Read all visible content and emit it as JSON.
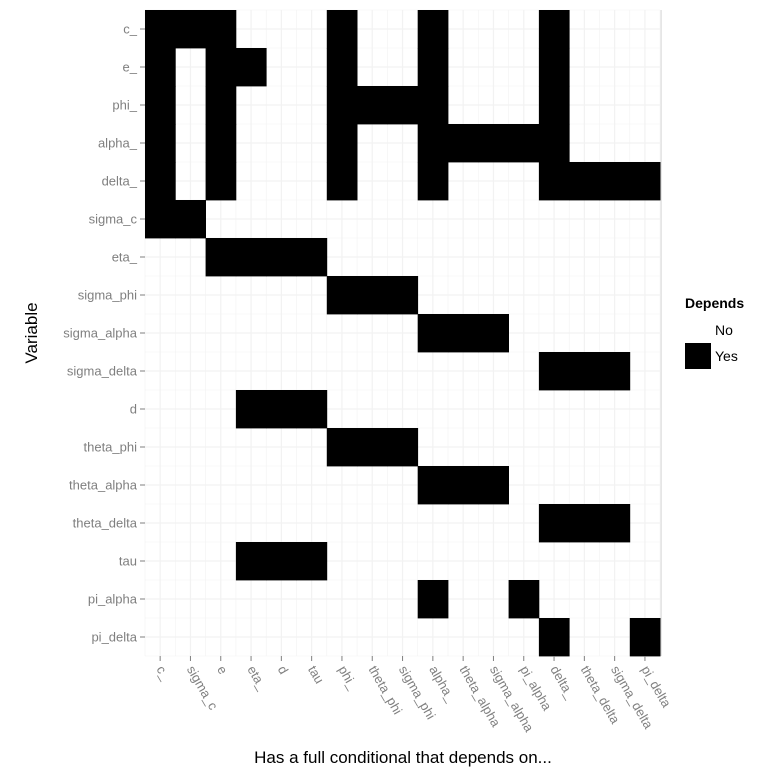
{
  "chart_data": {
    "type": "heatmap",
    "xlabel": "Has a full conditional that depends on...",
    "ylabel": "Variable",
    "x_categories": [
      "c_",
      "sigma_c",
      "e",
      "eta_",
      "d",
      "tau",
      "phi_",
      "theta_phi",
      "sigma_phi",
      "alpha_",
      "theta_alpha",
      "sigma_alpha",
      "pi_alpha",
      "delta_",
      "theta_delta",
      "sigma_delta",
      "pi_delta"
    ],
    "y_categories": [
      "c_",
      "e_",
      "phi_",
      "alpha_",
      "delta_",
      "sigma_c",
      "eta_",
      "sigma_phi",
      "sigma_alpha",
      "sigma_delta",
      "d",
      "theta_phi",
      "theta_alpha",
      "theta_delta",
      "tau",
      "pi_alpha",
      "pi_delta"
    ],
    "values": [
      [
        1,
        1,
        1,
        0,
        0,
        0,
        1,
        0,
        0,
        1,
        0,
        0,
        0,
        1,
        0,
        0,
        0
      ],
      [
        1,
        0,
        1,
        1,
        0,
        0,
        1,
        0,
        0,
        1,
        0,
        0,
        0,
        1,
        0,
        0,
        0
      ],
      [
        1,
        0,
        1,
        0,
        0,
        0,
        1,
        1,
        1,
        1,
        0,
        0,
        0,
        1,
        0,
        0,
        0
      ],
      [
        1,
        0,
        1,
        0,
        0,
        0,
        1,
        0,
        0,
        1,
        1,
        1,
        1,
        1,
        0,
        0,
        0
      ],
      [
        1,
        0,
        1,
        0,
        0,
        0,
        1,
        0,
        0,
        1,
        0,
        0,
        0,
        1,
        1,
        1,
        1
      ],
      [
        1,
        1,
        0,
        0,
        0,
        0,
        0,
        0,
        0,
        0,
        0,
        0,
        0,
        0,
        0,
        0,
        0
      ],
      [
        0,
        0,
        1,
        1,
        1,
        1,
        0,
        0,
        0,
        0,
        0,
        0,
        0,
        0,
        0,
        0,
        0
      ],
      [
        0,
        0,
        0,
        0,
        0,
        0,
        1,
        1,
        1,
        0,
        0,
        0,
        0,
        0,
        0,
        0,
        0
      ],
      [
        0,
        0,
        0,
        0,
        0,
        0,
        0,
        0,
        0,
        1,
        1,
        1,
        0,
        0,
        0,
        0,
        0
      ],
      [
        0,
        0,
        0,
        0,
        0,
        0,
        0,
        0,
        0,
        0,
        0,
        0,
        0,
        1,
        1,
        1,
        0
      ],
      [
        0,
        0,
        0,
        1,
        1,
        1,
        0,
        0,
        0,
        0,
        0,
        0,
        0,
        0,
        0,
        0,
        0
      ],
      [
        0,
        0,
        0,
        0,
        0,
        0,
        1,
        1,
        1,
        0,
        0,
        0,
        0,
        0,
        0,
        0,
        0
      ],
      [
        0,
        0,
        0,
        0,
        0,
        0,
        0,
        0,
        0,
        1,
        1,
        1,
        0,
        0,
        0,
        0,
        0
      ],
      [
        0,
        0,
        0,
        0,
        0,
        0,
        0,
        0,
        0,
        0,
        0,
        0,
        0,
        1,
        1,
        1,
        0
      ],
      [
        0,
        0,
        0,
        1,
        1,
        1,
        0,
        0,
        0,
        0,
        0,
        0,
        0,
        0,
        0,
        0,
        0
      ],
      [
        0,
        0,
        0,
        0,
        0,
        0,
        0,
        0,
        0,
        1,
        0,
        0,
        1,
        0,
        0,
        0,
        0
      ],
      [
        0,
        0,
        0,
        0,
        0,
        0,
        0,
        0,
        0,
        0,
        0,
        0,
        0,
        1,
        0,
        0,
        1
      ]
    ],
    "legend": {
      "title": "Depends",
      "entries": [
        {
          "label": "No",
          "color": "#ffffff"
        },
        {
          "label": "Yes",
          "color": "#000000"
        }
      ],
      "position": "right"
    },
    "colors": {
      "yes": "#000000",
      "no": "#ffffff",
      "grid": "#f2f2f2"
    },
    "grid": true
  }
}
